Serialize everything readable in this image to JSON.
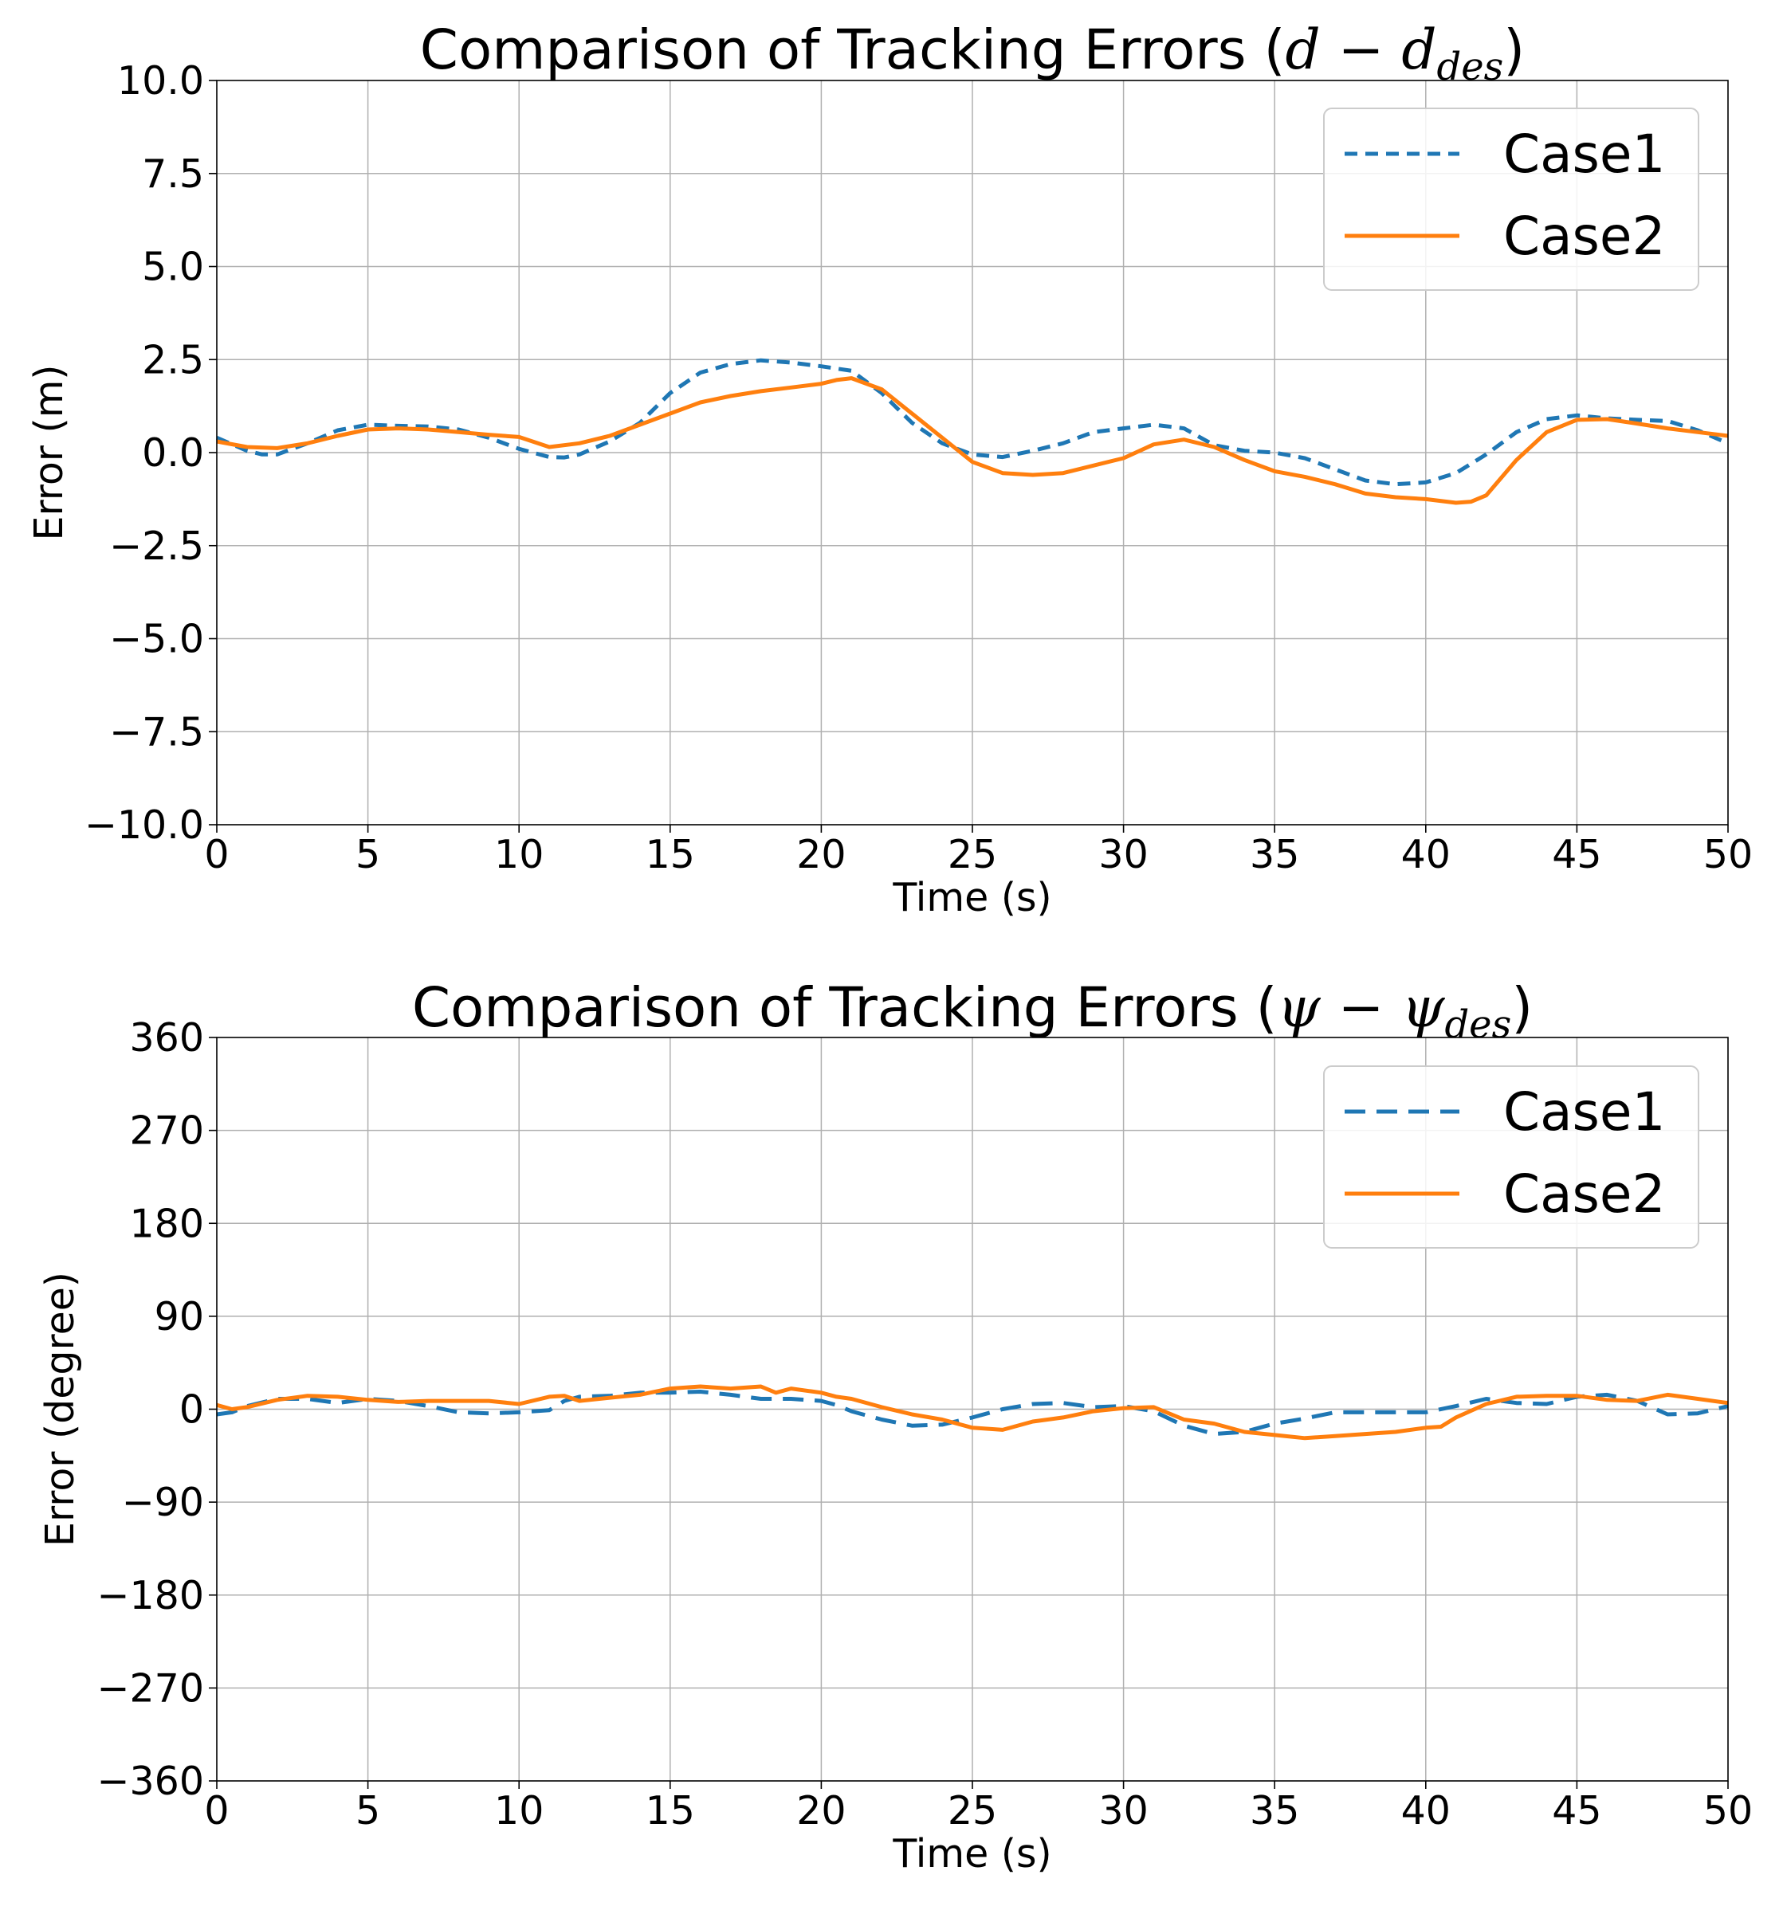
{
  "chart_data": [
    {
      "type": "line",
      "title": "Comparison of Tracking Errors ",
      "title_math": {
        "main": "d − d",
        "sub": "des"
      },
      "xlabel": "Time (s)",
      "ylabel": "Error (m)",
      "xlim": [
        0,
        50
      ],
      "ylim": [
        -10,
        10
      ],
      "xticks": [
        0,
        5,
        10,
        15,
        20,
        25,
        30,
        35,
        40,
        45,
        50
      ],
      "xtick_labels": [
        "0",
        "5",
        "10",
        "15",
        "20",
        "25",
        "30",
        "35",
        "40",
        "45",
        "50"
      ],
      "yticks": [
        10,
        7.5,
        5,
        2.5,
        0,
        -2.5,
        -5,
        -7.5,
        -10
      ],
      "ytick_labels": [
        "10.0",
        "7.5",
        "5.0",
        "2.5",
        "0.0",
        "−2.5",
        "−5.0",
        "−7.5",
        "−10.0"
      ],
      "grid": true,
      "legend_position": "top-right",
      "series": [
        {
          "name": "Case1",
          "color": "#1f77b4",
          "style": "dashed",
          "x": [
            0,
            1,
            1.5,
            2,
            3,
            4,
            5,
            6,
            7,
            8,
            9,
            10,
            11,
            11.5,
            12,
            13,
            14,
            15,
            16,
            17,
            18,
            19,
            20,
            21,
            22,
            23,
            24,
            25,
            26,
            27,
            28,
            29,
            30,
            31,
            32,
            33,
            34,
            35,
            36,
            37,
            38,
            39,
            40,
            41,
            42,
            43,
            44,
            45,
            46,
            47,
            48,
            49,
            50
          ],
          "y": [
            0.4,
            0.05,
            -0.05,
            -0.05,
            0.25,
            0.6,
            0.75,
            0.72,
            0.7,
            0.62,
            0.4,
            0.1,
            -0.12,
            -0.13,
            -0.05,
            0.3,
            0.8,
            1.6,
            2.15,
            2.38,
            2.48,
            2.42,
            2.32,
            2.2,
            1.6,
            0.8,
            0.25,
            -0.05,
            -0.12,
            0.05,
            0.25,
            0.55,
            0.65,
            0.75,
            0.65,
            0.2,
            0.05,
            0.0,
            -0.15,
            -0.45,
            -0.75,
            -0.85,
            -0.8,
            -0.55,
            -0.05,
            0.55,
            0.9,
            1.0,
            0.92,
            0.88,
            0.85,
            0.6,
            0.25
          ]
        },
        {
          "name": "Case2",
          "color": "#ff7f0e",
          "style": "solid",
          "x": [
            0,
            1,
            2,
            3,
            4,
            5,
            6,
            7,
            8,
            9,
            10,
            11,
            12,
            13,
            14,
            15,
            16,
            17,
            18,
            19,
            20,
            20.5,
            21,
            22,
            23,
            24,
            25,
            26,
            27,
            28,
            29,
            30,
            31,
            32,
            33,
            34,
            35,
            36,
            37,
            38,
            39,
            40,
            41,
            41.5,
            42,
            43,
            44,
            45,
            46,
            47,
            48,
            49,
            50
          ],
          "y": [
            0.3,
            0.15,
            0.12,
            0.25,
            0.45,
            0.62,
            0.65,
            0.62,
            0.55,
            0.48,
            0.42,
            0.15,
            0.25,
            0.45,
            0.75,
            1.05,
            1.35,
            1.52,
            1.65,
            1.75,
            1.85,
            1.95,
            2.0,
            1.7,
            1.05,
            0.4,
            -0.25,
            -0.55,
            -0.6,
            -0.55,
            -0.35,
            -0.15,
            0.22,
            0.35,
            0.15,
            -0.2,
            -0.5,
            -0.65,
            -0.85,
            -1.1,
            -1.2,
            -1.25,
            -1.35,
            -1.32,
            -1.15,
            -0.2,
            0.55,
            0.88,
            0.9,
            0.78,
            0.65,
            0.55,
            0.45
          ]
        }
      ]
    },
    {
      "type": "line",
      "title": "Comparison of Tracking Errors ",
      "title_math": {
        "main": "ψ − ψ",
        "sub": "des"
      },
      "xlabel": "Time (s)",
      "ylabel": "Error (degree)",
      "xlim": [
        0,
        50
      ],
      "ylim": [
        -360,
        360
      ],
      "xticks": [
        0,
        5,
        10,
        15,
        20,
        25,
        30,
        35,
        40,
        45,
        50
      ],
      "xtick_labels": [
        "0",
        "5",
        "10",
        "15",
        "20",
        "25",
        "30",
        "35",
        "40",
        "45",
        "50"
      ],
      "yticks": [
        360,
        270,
        180,
        90,
        0,
        -90,
        -180,
        -270,
        -360
      ],
      "ytick_labels": [
        "360",
        "270",
        "180",
        "90",
        "0",
        "−90",
        "−180",
        "−270",
        "−360"
      ],
      "grid": true,
      "legend_position": "top-right",
      "series": [
        {
          "name": "Case1",
          "color": "#1f77b4",
          "style": "dashed",
          "x": [
            0,
            0.5,
            1,
            2,
            3,
            4,
            5,
            6,
            7,
            8,
            9,
            10,
            11,
            11.5,
            12,
            13,
            14,
            15,
            16,
            17,
            18,
            19,
            20,
            20.5,
            21,
            22,
            23,
            24,
            25,
            26,
            27,
            28,
            29,
            30,
            31,
            32,
            33,
            34,
            35,
            36,
            37,
            38,
            39,
            40,
            41,
            42,
            43,
            44,
            45,
            46,
            47,
            48,
            49,
            50
          ],
          "y": [
            -5,
            -3,
            3,
            10,
            10,
            6,
            10,
            8,
            3,
            -3,
            -4,
            -3,
            -1,
            8,
            12,
            13,
            16,
            16,
            17,
            14,
            10,
            10,
            8,
            4,
            -2,
            -10,
            -16,
            -15,
            -8,
            0,
            5,
            6,
            2,
            3,
            -2,
            -16,
            -24,
            -22,
            -14,
            -9,
            -3,
            -3,
            -3,
            -3,
            3,
            10,
            6,
            5,
            12,
            14,
            8,
            -5,
            -4,
            3
          ]
        },
        {
          "name": "Case2",
          "color": "#ff7f0e",
          "style": "solid",
          "x": [
            0,
            0.5,
            1,
            2,
            3,
            4,
            5,
            6,
            7,
            8,
            9,
            10,
            11,
            11.5,
            12,
            13,
            14,
            15,
            16,
            17,
            18,
            18.5,
            19,
            20,
            20.5,
            21,
            22,
            23,
            24,
            25,
            26,
            27,
            28,
            29,
            30,
            31,
            32,
            33,
            34,
            35,
            36,
            37,
            38,
            39,
            40,
            40.5,
            41,
            42,
            43,
            44,
            45,
            46,
            47,
            48,
            49,
            50
          ],
          "y": [
            4,
            0,
            2,
            9,
            13,
            12,
            9,
            7,
            8,
            8,
            8,
            5,
            12,
            13,
            8,
            11,
            14,
            20,
            22,
            20,
            22,
            16,
            20,
            16,
            12,
            10,
            2,
            -5,
            -10,
            -18,
            -20,
            -12,
            -8,
            -2,
            1,
            2,
            -10,
            -14,
            -22,
            -25,
            -28,
            -26,
            -24,
            -22,
            -18,
            -17,
            -8,
            5,
            12,
            13,
            13,
            9,
            8,
            14,
            10,
            6
          ]
        }
      ]
    }
  ]
}
